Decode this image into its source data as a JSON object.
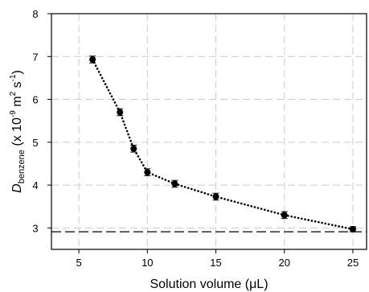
{
  "chart_data": {
    "type": "scatter",
    "xlabel": "Solution volume (μL)",
    "ylabel": {
      "symbol": "D",
      "subscript": "benzene",
      "prefix": " (x 10",
      "exp": "-9",
      "unit1": " m",
      "exp2": "2",
      "unit2": " s",
      "exp3": "-1",
      "suffix": ")"
    },
    "xlim": [
      3,
      26
    ],
    "ylim": [
      2.5,
      8
    ],
    "xticks": [
      5,
      10,
      15,
      20,
      25
    ],
    "yticks": [
      3,
      4,
      5,
      6,
      7,
      8
    ],
    "grid": true,
    "series": [
      {
        "x": [
          6,
          8,
          9,
          10,
          12,
          15,
          20,
          25
        ],
        "y": [
          6.93,
          5.7,
          4.85,
          4.3,
          4.03,
          3.73,
          3.3,
          2.97
        ],
        "err": [
          0.08,
          0.08,
          0.08,
          0.08,
          0.08,
          0.08,
          0.08,
          0.06
        ]
      }
    ],
    "reference_line": {
      "y": 2.91
    },
    "colors": {
      "points": "#000000",
      "grid": "#cccccc",
      "axis": "#000000"
    }
  }
}
